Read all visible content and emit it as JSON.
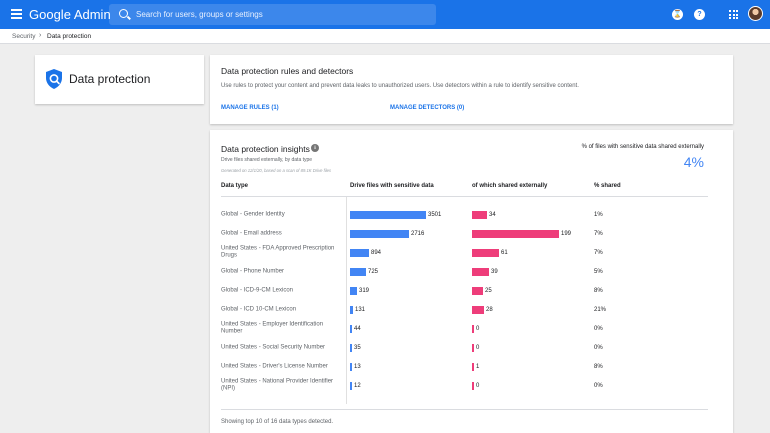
{
  "header": {
    "logo_google": "Google",
    "logo_admin": "Admin",
    "search_placeholder": "Search for users, groups or settings",
    "icons": [
      "menu-icon",
      "search-icon",
      "help-support-icon",
      "help-icon",
      "apps-grid-icon",
      "avatar"
    ]
  },
  "breadcrumb": {
    "parent": "Security",
    "current": "Data protection"
  },
  "left_card": {
    "title": "Data protection"
  },
  "rules_card": {
    "title": "Data protection rules and detectors",
    "description": "Use rules to protect your content and prevent data leaks to unauthorized users. Use detectors within a rule to identify sensitive content.",
    "manage_rules": "MANAGE RULES (1)",
    "manage_detectors": "MANAGE DETECTORS (0)"
  },
  "insights": {
    "title": "Data protection insights",
    "subtitle": "Drive files shared externally, by data type",
    "generated": "Generated on 12/1/20, based on a scan of 89.1K Drive files",
    "pct_label": "% of files with sensitive data shared externally",
    "pct_value": "4%",
    "columns": [
      "Data type",
      "Drive files with sensitive data",
      "of which shared externally",
      "% shared"
    ],
    "footer": "Showing top 10 of 16 data types detected.",
    "colors": {
      "drive_bar": "#4285f4",
      "shared_bar": "#ee3d7a"
    },
    "rows": [
      {
        "type": "Global - Gender Identity",
        "drive": 3501,
        "shared": 34,
        "pct": "1%"
      },
      {
        "type": "Global - Email address",
        "drive": 2716,
        "shared": 199,
        "pct": "7%"
      },
      {
        "type": "United States - FDA Approved Prescription Drugs",
        "drive": 894,
        "shared": 61,
        "pct": "7%"
      },
      {
        "type": "Global - Phone Number",
        "drive": 725,
        "shared": 39,
        "pct": "5%"
      },
      {
        "type": "Global - ICD-9-CM Lexicon",
        "drive": 319,
        "shared": 25,
        "pct": "8%"
      },
      {
        "type": "Global - ICD 10-CM Lexicon",
        "drive": 131,
        "shared": 28,
        "pct": "21%"
      },
      {
        "type": "United States - Employer Identification Number",
        "drive": 44,
        "shared": 0,
        "pct": "0%"
      },
      {
        "type": "United States - Social Security Number",
        "drive": 35,
        "shared": 0,
        "pct": "0%"
      },
      {
        "type": "United States - Driver's License Number",
        "drive": 13,
        "shared": 1,
        "pct": "8%"
      },
      {
        "type": "United States - National Provider Identifier (NPI)",
        "drive": 12,
        "shared": 0,
        "pct": "0%"
      }
    ]
  }
}
